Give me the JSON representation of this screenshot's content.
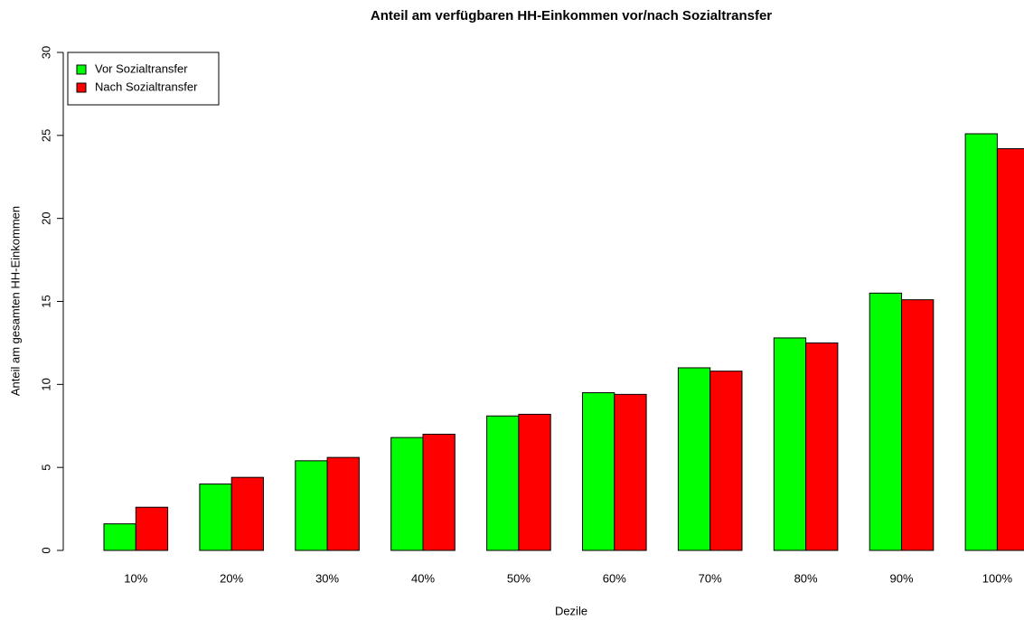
{
  "chart_data": {
    "type": "bar",
    "title": "Anteil am verfügbaren HH-Einkommen vor/nach Sozialtransfer",
    "x_label": "Dezile",
    "y_label": "Anteil am gesamten HH-Einkommen",
    "categories": [
      "10%",
      "20%",
      "30%",
      "40%",
      "50%",
      "60%",
      "70%",
      "80%",
      "90%",
      "100%"
    ],
    "series": [
      {
        "name": "Vor Sozialtransfer",
        "color": "#00ff00",
        "values": [
          1.6,
          4.0,
          5.4,
          6.8,
          8.1,
          9.5,
          11.0,
          12.8,
          15.5,
          25.1
        ]
      },
      {
        "name": "Nach Sozialtransfer",
        "color": "#ff0000",
        "values": [
          2.6,
          4.4,
          5.6,
          7.0,
          8.2,
          9.4,
          10.8,
          12.5,
          15.1,
          24.2
        ]
      }
    ],
    "ylim": [
      0,
      30
    ],
    "yticks": [
      0,
      5,
      10,
      15,
      20,
      25,
      30
    ],
    "legend": "top-left"
  }
}
